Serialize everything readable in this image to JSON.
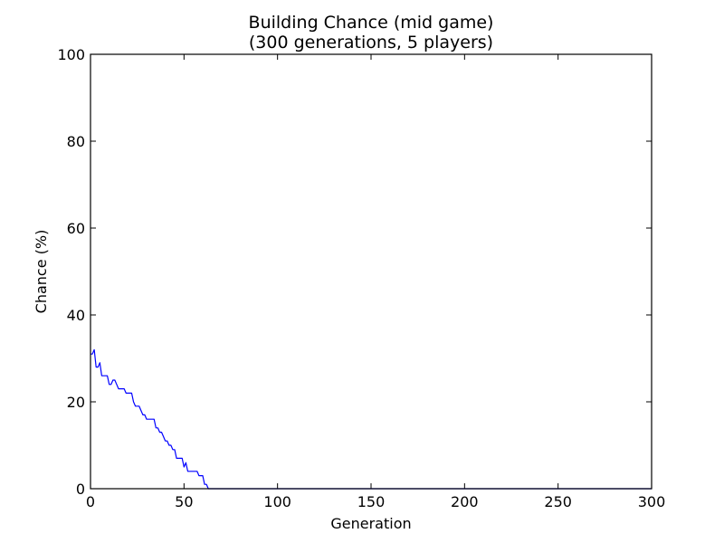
{
  "chart_data": {
    "type": "line",
    "title_line1": "Building Chance (mid game)",
    "title_line2": "(300 generations, 5 players)",
    "xlabel": "Generation",
    "ylabel": "Chance (%)",
    "xlim": [
      0,
      300
    ],
    "ylim": [
      0,
      100
    ],
    "xticks": [
      0,
      50,
      100,
      150,
      200,
      250,
      300
    ],
    "yticks": [
      0,
      20,
      40,
      60,
      80,
      100
    ],
    "grid": false,
    "series": [
      {
        "color": "#0000ff",
        "x": [
          0,
          1,
          2,
          3,
          4,
          5,
          6,
          7,
          8,
          9,
          10,
          11,
          12,
          13,
          14,
          15,
          16,
          17,
          18,
          19,
          20,
          21,
          22,
          23,
          24,
          25,
          26,
          27,
          28,
          29,
          30,
          31,
          32,
          33,
          34,
          35,
          36,
          37,
          38,
          39,
          40,
          41,
          42,
          43,
          44,
          45,
          46,
          47,
          48,
          49,
          50,
          51,
          52,
          53,
          54,
          55,
          56,
          57,
          58,
          59,
          60,
          61,
          62,
          63,
          64,
          300
        ],
        "y": [
          31,
          31,
          32,
          28,
          28,
          29,
          26,
          26,
          26,
          26,
          24,
          24,
          25,
          25,
          24,
          23,
          23,
          23,
          23,
          22,
          22,
          22,
          22,
          20,
          19,
          19,
          19,
          18,
          17,
          17,
          16,
          16,
          16,
          16,
          16,
          14,
          14,
          13,
          13,
          12,
          11,
          11,
          10,
          10,
          9,
          9,
          7,
          7,
          7,
          7,
          5,
          6,
          4,
          4,
          4,
          4,
          4,
          4,
          3,
          3,
          3,
          1,
          1,
          0,
          0,
          0
        ]
      }
    ]
  }
}
